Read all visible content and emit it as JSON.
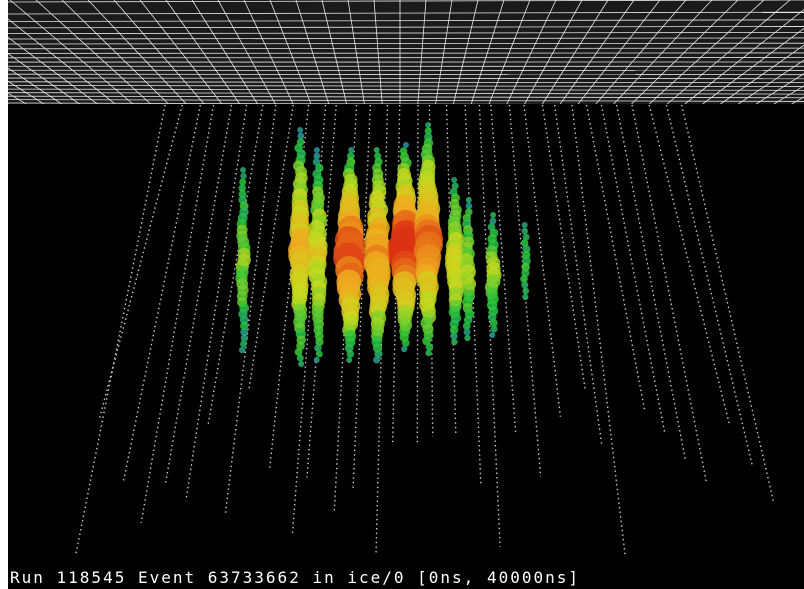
{
  "footer": {
    "text": "Run 118545 Event 63733662 in ice/0 [0ns, 40000ns]"
  }
}
